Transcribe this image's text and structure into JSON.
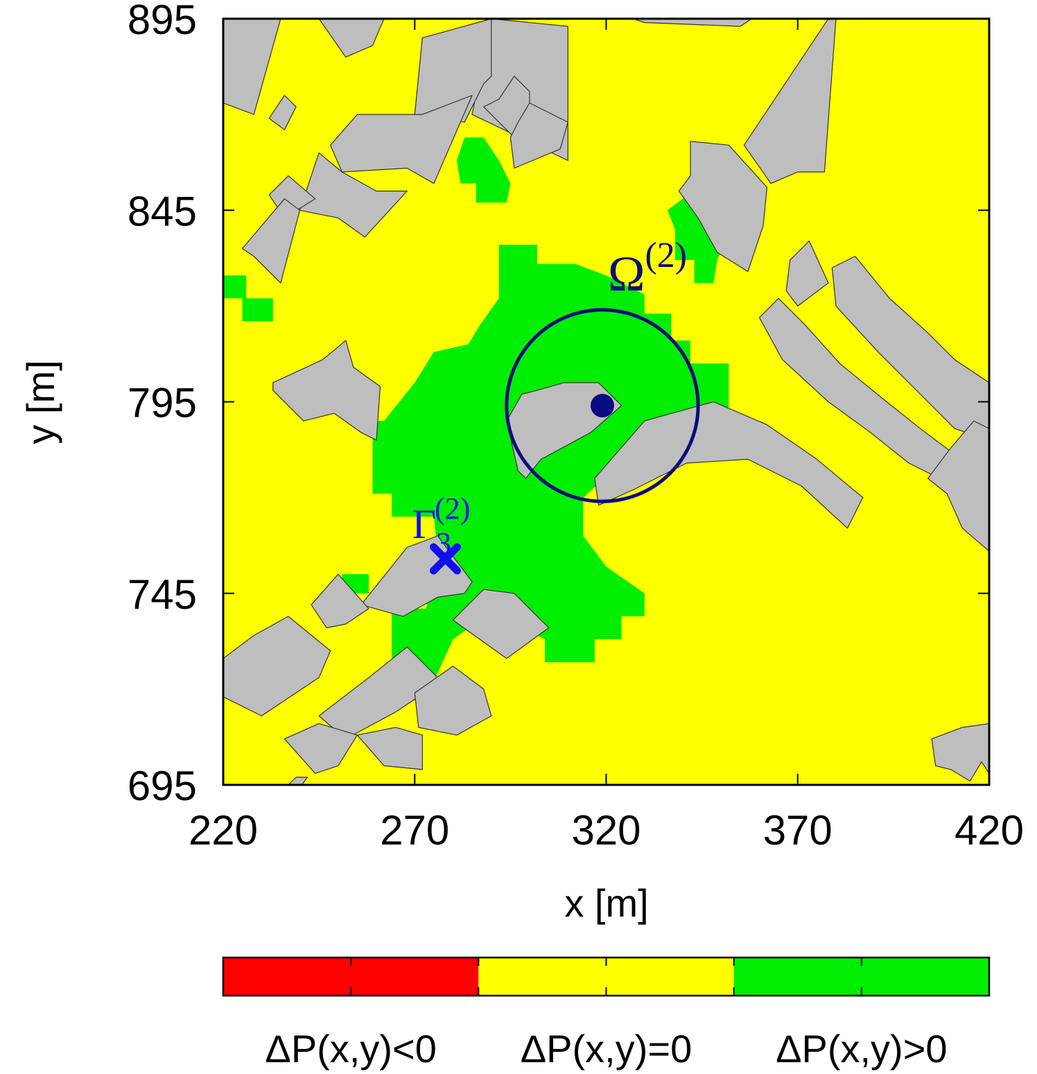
{
  "chart_data": {
    "type": "heatmap",
    "xlabel": "x [m]",
    "ylabel": "y [m]",
    "xlim": [
      220,
      420
    ],
    "ylim": [
      695,
      895
    ],
    "x_ticks": [
      "220",
      "270",
      "320",
      "370",
      "420"
    ],
    "y_ticks": [
      "695",
      "745",
      "795",
      "845",
      "895"
    ],
    "grid": false,
    "colors": {
      "negative": "#ff0000",
      "zero": "#ffff00",
      "positive": "#00ee00",
      "building": "#bebebe",
      "marker": "#0a0a80",
      "receiver": "#1010ee"
    },
    "legend": {
      "placement": "bottom",
      "entries": [
        {
          "label": "ΔP(x,y)<0",
          "color": "#ff0000"
        },
        {
          "label": "ΔP(x,y)=0",
          "color": "#ffff00"
        },
        {
          "label": "ΔP(x,y)>0",
          "color": "#00ee00"
        }
      ]
    },
    "annotations": {
      "omega": {
        "base": "Ω",
        "sup": "(2)",
        "center": [
          319,
          794
        ],
        "radius": 25
      },
      "gamma": {
        "base": "Γ",
        "sub": "3",
        "sup": "(2)",
        "point": [
          278,
          754
        ]
      }
    },
    "positive_region": [
      [
        292,
        836
      ],
      [
        302,
        836
      ],
      [
        302,
        831
      ],
      [
        312,
        831
      ],
      [
        320,
        828
      ],
      [
        330,
        823
      ],
      [
        330,
        818
      ],
      [
        337,
        818
      ],
      [
        337,
        811
      ],
      [
        342,
        811
      ],
      [
        342,
        805
      ],
      [
        352,
        805
      ],
      [
        352,
        785
      ],
      [
        337,
        785
      ],
      [
        325,
        780
      ],
      [
        314,
        770
      ],
      [
        314,
        760
      ],
      [
        320,
        752
      ],
      [
        330,
        745
      ],
      [
        330,
        739
      ],
      [
        324,
        739
      ],
      [
        324,
        733
      ],
      [
        317,
        733
      ],
      [
        317,
        727
      ],
      [
        304,
        727
      ],
      [
        304,
        733
      ],
      [
        290,
        740
      ],
      [
        280,
        733
      ],
      [
        275,
        722
      ],
      [
        270,
        717
      ],
      [
        264,
        717
      ],
      [
        264,
        741
      ],
      [
        273,
        741
      ],
      [
        276,
        756
      ],
      [
        275,
        765
      ],
      [
        264,
        765
      ],
      [
        264,
        771
      ],
      [
        259,
        771
      ],
      [
        259,
        790
      ],
      [
        262,
        790
      ],
      [
        270,
        800
      ],
      [
        275,
        808
      ],
      [
        284,
        810
      ],
      [
        287,
        815
      ],
      [
        292,
        822
      ]
    ],
    "positive_patches": [
      [
        [
          283,
          864
        ],
        [
          288,
          864
        ],
        [
          292,
          858
        ],
        [
          295,
          852
        ],
        [
          294,
          847
        ],
        [
          286,
          847
        ],
        [
          286,
          852
        ],
        [
          282,
          852
        ],
        [
          281,
          858
        ]
      ],
      [
        [
          341,
          851
        ],
        [
          346,
          851
        ],
        [
          349,
          845
        ],
        [
          351,
          837
        ],
        [
          349,
          832
        ],
        [
          348,
          826
        ],
        [
          343,
          826
        ],
        [
          343,
          832
        ],
        [
          338,
          832
        ],
        [
          338,
          840
        ],
        [
          336,
          845
        ],
        [
          340,
          848
        ]
      ],
      [
        [
          220,
          828
        ],
        [
          226,
          828
        ],
        [
          226,
          822
        ],
        [
          233,
          822
        ],
        [
          233,
          816
        ],
        [
          225,
          816
        ],
        [
          225,
          822
        ],
        [
          220,
          822
        ]
      ],
      [
        [
          251,
          750
        ],
        [
          258,
          750
        ],
        [
          258,
          745
        ],
        [
          253,
          745
        ],
        [
          251,
          748
        ]
      ]
    ],
    "buildings": [
      [
        [
          220,
          895
        ],
        [
          235,
          895
        ],
        [
          228,
          870
        ],
        [
          220,
          873
        ]
      ],
      [
        [
          245,
          895
        ],
        [
          262,
          895
        ],
        [
          259,
          888
        ],
        [
          252,
          885
        ]
      ],
      [
        [
          236,
          875
        ],
        [
          239,
          872
        ],
        [
          236,
          866
        ],
        [
          232,
          869
        ]
      ],
      [
        [
          290,
          895
        ],
        [
          310,
          893
        ],
        [
          310,
          858
        ],
        [
          285,
          870
        ]
      ],
      [
        [
          272,
          890
        ],
        [
          290,
          895
        ],
        [
          290,
          880
        ],
        [
          288,
          878
        ],
        [
          283,
          868
        ],
        [
          270,
          870
        ]
      ],
      [
        [
          255,
          870
        ],
        [
          272,
          870
        ],
        [
          285,
          875
        ],
        [
          275,
          852
        ],
        [
          268,
          856
        ],
        [
          251,
          855
        ],
        [
          248,
          862
        ]
      ],
      [
        [
          245,
          860
        ],
        [
          251,
          855
        ],
        [
          260,
          850
        ],
        [
          268,
          850
        ],
        [
          257,
          838
        ],
        [
          250,
          843
        ],
        [
          240,
          845
        ]
      ],
      [
        [
          237,
          854
        ],
        [
          244,
          848
        ],
        [
          236,
          843
        ],
        [
          232,
          849
        ]
      ],
      [
        [
          236,
          848
        ],
        [
          240,
          845
        ],
        [
          235,
          826
        ],
        [
          228,
          833
        ],
        [
          225,
          835
        ]
      ],
      [
        [
          296,
          880
        ],
        [
          300,
          876
        ],
        [
          300,
          860
        ],
        [
          288,
          872
        ],
        [
          292,
          874
        ]
      ],
      [
        [
          300,
          873
        ],
        [
          310,
          868
        ],
        [
          308,
          861
        ],
        [
          296,
          856
        ],
        [
          295,
          864
        ],
        [
          297,
          868
        ]
      ],
      [
        [
          330,
          894
        ],
        [
          355,
          893
        ],
        [
          358,
          895
        ],
        [
          350,
          895
        ],
        [
          327,
          895
        ]
      ],
      [
        [
          356,
          862
        ],
        [
          378,
          895
        ],
        [
          380,
          895
        ],
        [
          377,
          855
        ],
        [
          370,
          855
        ],
        [
          363,
          852
        ]
      ],
      [
        [
          342,
          863
        ],
        [
          352,
          862
        ],
        [
          362,
          851
        ],
        [
          361,
          841
        ],
        [
          357,
          829
        ],
        [
          349,
          834
        ],
        [
          344,
          843
        ],
        [
          339,
          850
        ],
        [
          342,
          854
        ]
      ],
      [
        [
          368,
          832
        ],
        [
          373,
          837
        ],
        [
          378,
          826
        ],
        [
          370,
          820
        ],
        [
          367,
          824
        ]
      ],
      [
        [
          379,
          830
        ],
        [
          385,
          833
        ],
        [
          394,
          822
        ],
        [
          404,
          813
        ],
        [
          411,
          806
        ],
        [
          420,
          800
        ],
        [
          420,
          785
        ],
        [
          411,
          788
        ],
        [
          402,
          797
        ],
        [
          391,
          808
        ],
        [
          380,
          820
        ]
      ],
      [
        [
          360,
          817
        ],
        [
          365,
          822
        ],
        [
          372,
          815
        ],
        [
          381,
          805
        ],
        [
          392,
          796
        ],
        [
          402,
          788
        ],
        [
          410,
          782
        ],
        [
          407,
          775
        ],
        [
          399,
          779
        ],
        [
          389,
          787
        ],
        [
          378,
          795
        ],
        [
          366,
          806
        ]
      ],
      [
        [
          404,
          775
        ],
        [
          410,
          783
        ],
        [
          416,
          790
        ],
        [
          420,
          788
        ],
        [
          420,
          756
        ],
        [
          413,
          762
        ],
        [
          409,
          771
        ]
      ],
      [
        [
          309,
          800
        ],
        [
          318,
          800
        ],
        [
          324,
          794
        ],
        [
          316,
          787
        ],
        [
          303,
          780
        ],
        [
          299,
          775
        ],
        [
          297,
          777
        ],
        [
          294,
          790
        ],
        [
          298,
          797
        ],
        [
          302,
          798
        ]
      ],
      [
        [
          233,
          800
        ],
        [
          246,
          806
        ],
        [
          252,
          811
        ],
        [
          254,
          804
        ],
        [
          261,
          799
        ],
        [
          260,
          785
        ],
        [
          256,
          787
        ],
        [
          249,
          792
        ],
        [
          241,
          790
        ],
        [
          233,
          798
        ]
      ],
      [
        [
          317,
          775
        ],
        [
          330,
          790
        ],
        [
          348,
          795
        ],
        [
          362,
          789
        ],
        [
          375,
          780
        ],
        [
          387,
          770
        ],
        [
          383,
          762
        ],
        [
          371,
          773
        ],
        [
          357,
          780
        ],
        [
          341,
          779
        ],
        [
          327,
          772
        ],
        [
          318,
          768
        ]
      ],
      [
        [
          256,
          742
        ],
        [
          268,
          757
        ],
        [
          276,
          760
        ],
        [
          285,
          748
        ],
        [
          283,
          745
        ],
        [
          276,
          744
        ],
        [
          267,
          739
        ]
      ],
      [
        [
          243,
          742
        ],
        [
          250,
          750
        ],
        [
          258,
          741
        ],
        [
          252,
          737
        ],
        [
          247,
          736
        ]
      ],
      [
        [
          220,
          718
        ],
        [
          230,
          713
        ],
        [
          245,
          723
        ],
        [
          248,
          730
        ],
        [
          237,
          739
        ],
        [
          228,
          734
        ],
        [
          220,
          728
        ]
      ],
      [
        [
          245,
          713
        ],
        [
          258,
          723
        ],
        [
          268,
          731
        ],
        [
          277,
          722
        ],
        [
          265,
          714
        ],
        [
          252,
          707
        ]
      ],
      [
        [
          236,
          707
        ],
        [
          245,
          711
        ],
        [
          255,
          708
        ],
        [
          250,
          700
        ],
        [
          244,
          698
        ]
      ],
      [
        [
          255,
          708
        ],
        [
          262,
          700
        ],
        [
          272,
          699
        ],
        [
          272,
          708
        ],
        [
          265,
          710
        ]
      ],
      [
        [
          271,
          710
        ],
        [
          281,
          708
        ],
        [
          290,
          713
        ],
        [
          288,
          720
        ],
        [
          280,
          726
        ],
        [
          270,
          719
        ]
      ],
      [
        [
          280,
          738
        ],
        [
          288,
          746
        ],
        [
          296,
          745
        ],
        [
          305,
          736
        ],
        [
          294,
          728
        ],
        [
          287,
          733
        ]
      ],
      [
        [
          237,
          695
        ],
        [
          239,
          697
        ],
        [
          242,
          697
        ],
        [
          239,
          693
        ]
      ],
      [
        [
          405,
          707
        ],
        [
          413,
          710
        ],
        [
          420,
          711
        ],
        [
          420,
          698
        ],
        [
          418,
          701
        ],
        [
          415,
          696
        ],
        [
          410,
          699
        ],
        [
          406,
          700
        ]
      ]
    ]
  }
}
